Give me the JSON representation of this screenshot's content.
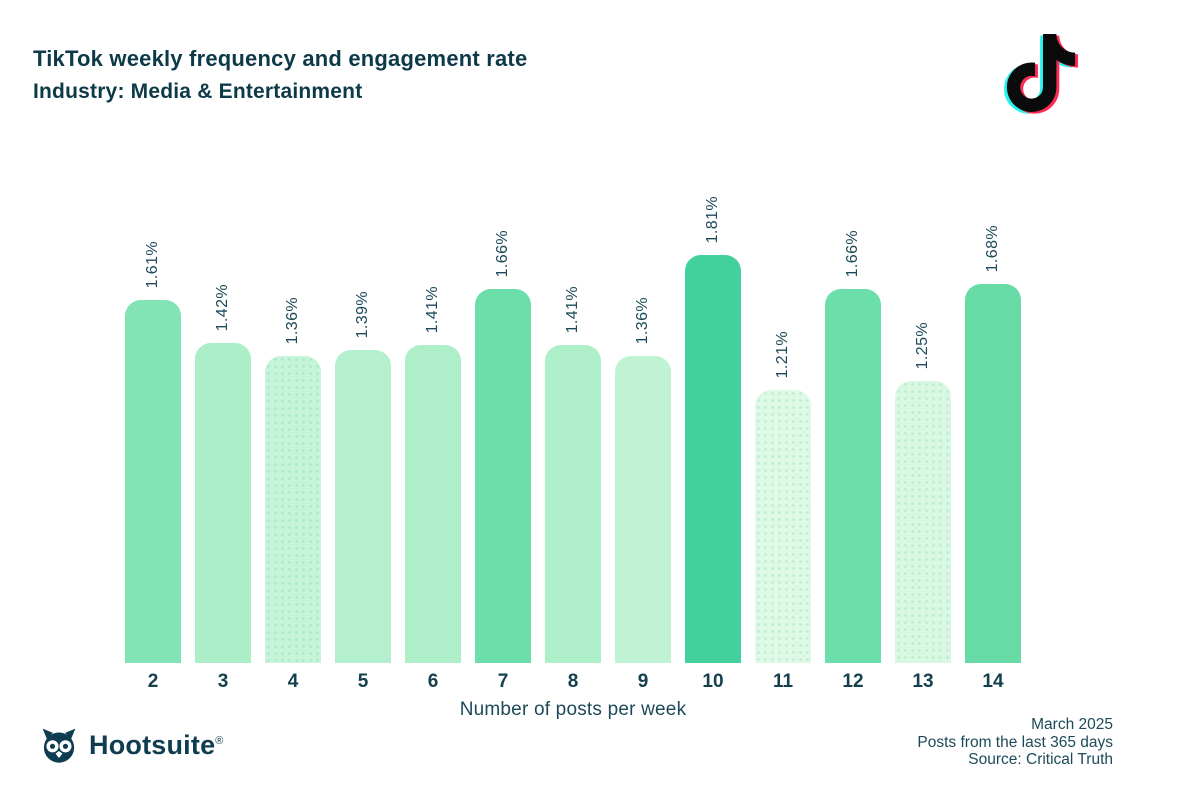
{
  "page": {
    "title": "TikTok weekly frequency and engagement rate",
    "subtitle": "Industry: Media & Entertainment"
  },
  "header": {
    "tiktok_icon": "tiktok-note-icon",
    "tiktok_colors": {
      "cyan": "#25f4ee",
      "pink": "#fe2c55",
      "black": "#0b0b0b"
    }
  },
  "chart_data": {
    "type": "bar",
    "title": "TikTok weekly frequency and engagement rate",
    "subtitle": "Industry: Media & Entertainment",
    "xlabel": "Number of posts per week",
    "ylim": [
      0,
      1.81
    ],
    "grid": false,
    "legend": false,
    "categories": [
      "2",
      "3",
      "4",
      "5",
      "6",
      "7",
      "8",
      "9",
      "10",
      "11",
      "12",
      "13",
      "14"
    ],
    "values": [
      1.61,
      1.42,
      1.36,
      1.39,
      1.41,
      1.66,
      1.41,
      1.36,
      1.81,
      1.21,
      1.66,
      1.25,
      1.68
    ],
    "value_labels": [
      "1.61%",
      "1.42%",
      "1.36%",
      "1.39%",
      "1.41%",
      "1.66%",
      "1.41%",
      "1.36%",
      "1.81%",
      "1.21%",
      "1.66%",
      "1.25%",
      "1.68%"
    ],
    "bar_colors": [
      "#82e3b4",
      "#aceec8",
      "#c6f4d8",
      "#b4f0cd",
      "#aeefca",
      "#6cdeaa",
      "#aeefca",
      "#bff3d4",
      "#42d19c",
      "#def9e5",
      "#6cdeaa",
      "#d9f8e1",
      "#66dba6"
    ],
    "dotted": [
      false,
      false,
      true,
      false,
      false,
      false,
      false,
      false,
      false,
      true,
      false,
      true,
      false
    ]
  },
  "footer": {
    "brand": "Hootsuite",
    "registered_mark": "®",
    "owl_icon": "hootsuite-owl-icon",
    "meta_lines": [
      "March 2025",
      "Posts from the last 365 days",
      "Source: Critical Truth"
    ]
  },
  "colors": {
    "title_text": "#0c3a49",
    "label_text": "#1d4a5a",
    "tick_text": "#14404f",
    "background": "#ffffff"
  }
}
